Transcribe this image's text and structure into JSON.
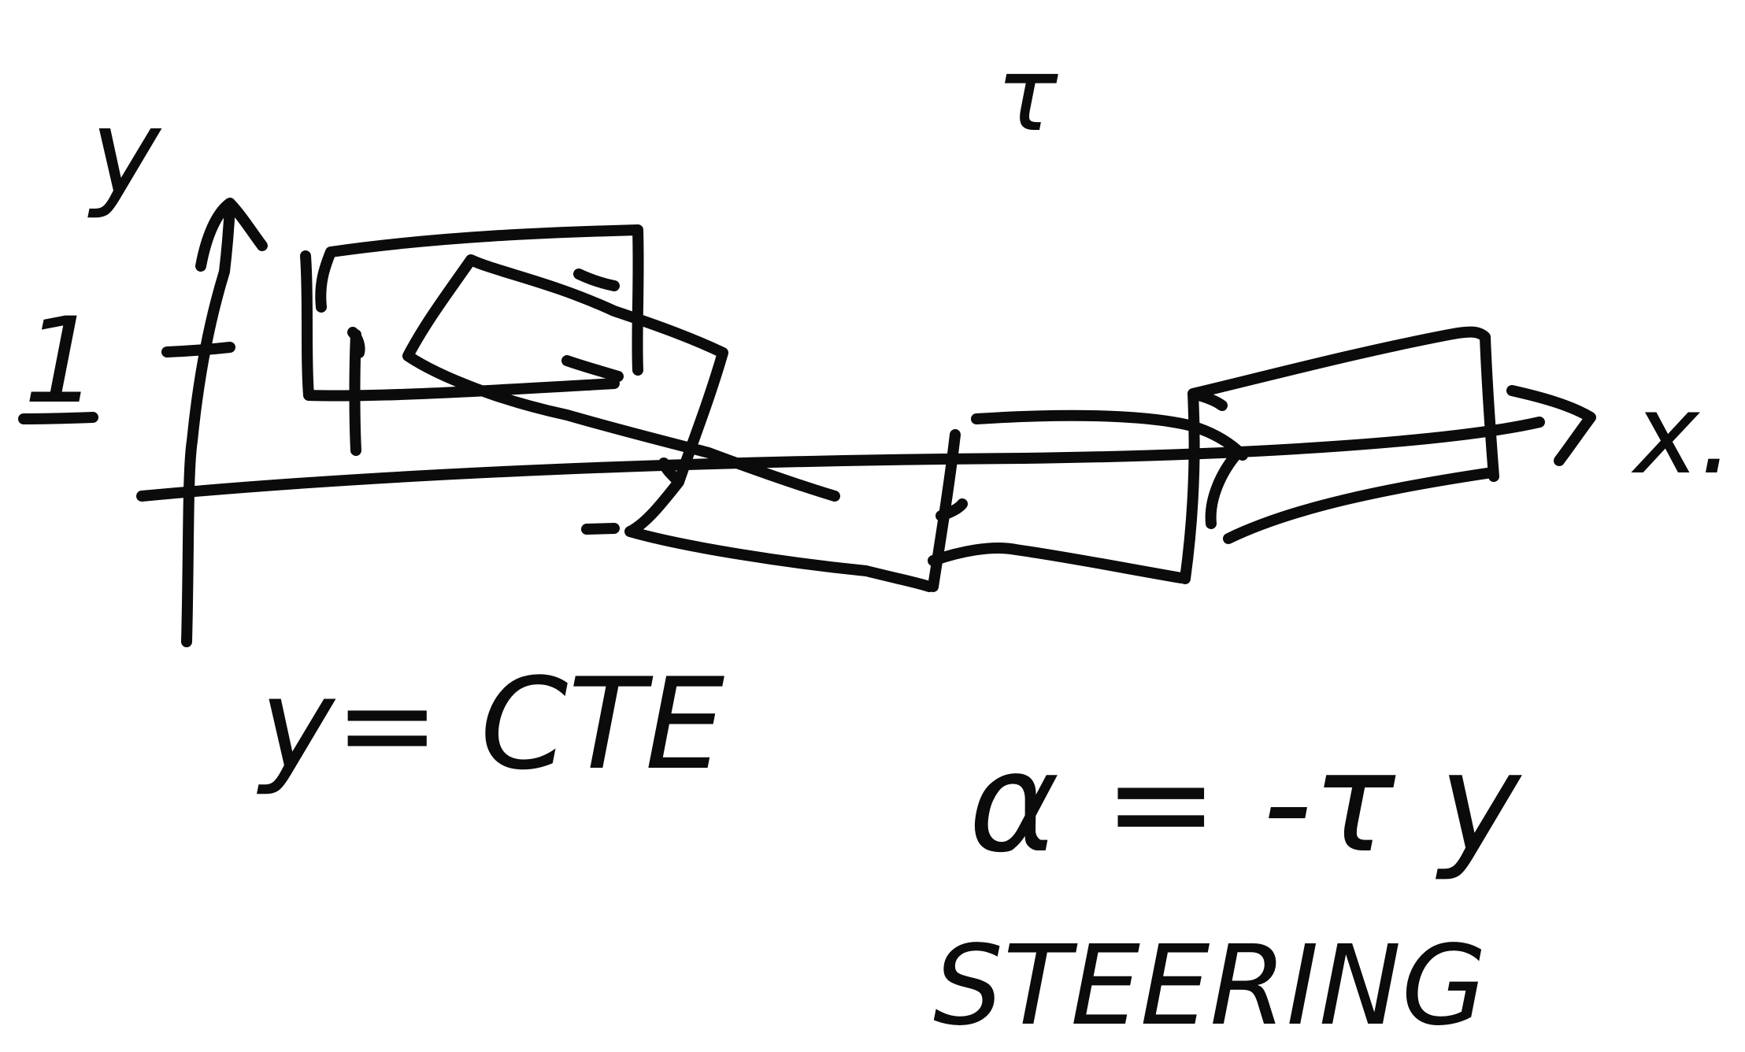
{
  "labels": {
    "y_axis": "y",
    "x_axis": "x.",
    "tick_one": "1",
    "tau_top": "τ",
    "y_equals": "y= CTE",
    "alpha_equation": "α = -τ y",
    "steering": "STEERING"
  },
  "colors": {
    "ink": "#0b0b0b",
    "paper": "#ffffff"
  }
}
